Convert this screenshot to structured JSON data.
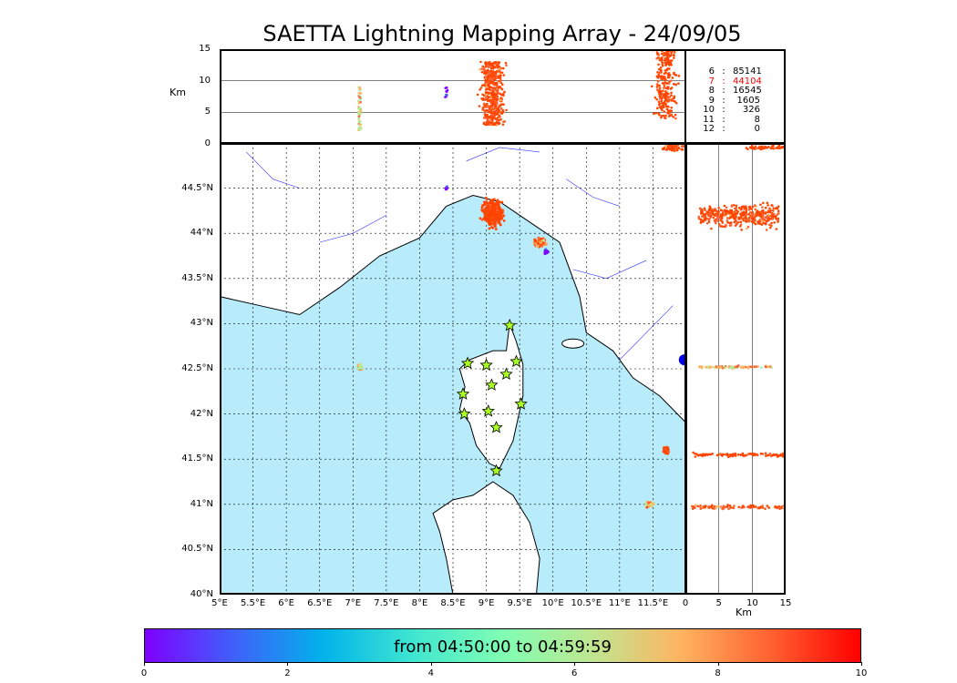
{
  "title": "SAETTA Lightning Mapping Array - 24/09/05",
  "top_panel": {
    "ylabel": "Km",
    "yticks": [
      "15",
      "10",
      "5",
      "0"
    ]
  },
  "side_panel": {
    "xlabel": "Km",
    "xticks": [
      "0",
      "5",
      "10",
      "15"
    ]
  },
  "map": {
    "lat_ticks": [
      "44.5°N",
      "44°N",
      "43.5°N",
      "43°N",
      "42.5°N",
      "42°N",
      "41.5°N",
      "41°N",
      "40.5°N",
      "40°N"
    ],
    "lon_ticks": [
      "5°E",
      "5.5°E",
      "6°E",
      "6.5°E",
      "7°E",
      "7.5°E",
      "8°E",
      "8.5°E",
      "9°E",
      "9.5°E",
      "10°E",
      "10.5°E",
      "11°E",
      "11.5°E"
    ],
    "lon_range": [
      5,
      12
    ],
    "lat_range": [
      40,
      45
    ],
    "sea_color": "#b8ecfb",
    "station_icon": "star-icon",
    "station_color": "#aaff22",
    "stations": [
      {
        "lon": 9.35,
        "lat": 42.98
      },
      {
        "lon": 8.72,
        "lat": 42.56
      },
      {
        "lon": 9.0,
        "lat": 42.54
      },
      {
        "lon": 9.45,
        "lat": 42.58
      },
      {
        "lon": 9.3,
        "lat": 42.44
      },
      {
        "lon": 9.08,
        "lat": 42.32
      },
      {
        "lon": 8.65,
        "lat": 42.22
      },
      {
        "lon": 9.52,
        "lat": 42.11
      },
      {
        "lon": 9.03,
        "lat": 42.03
      },
      {
        "lon": 8.67,
        "lat": 42.0
      },
      {
        "lon": 9.15,
        "lat": 41.85
      },
      {
        "lon": 9.15,
        "lat": 41.37
      }
    ]
  },
  "stats": [
    {
      "key": "6",
      "value": "85141",
      "highlight": false
    },
    {
      "key": "7",
      "value": "44104",
      "highlight": true
    },
    {
      "key": "8",
      "value": "16545",
      "highlight": false
    },
    {
      "key": "9",
      "value": "1605",
      "highlight": false
    },
    {
      "key": "10",
      "value": "326",
      "highlight": false
    },
    {
      "key": "11",
      "value": "8",
      "highlight": false
    },
    {
      "key": "12",
      "value": "0",
      "highlight": false
    }
  ],
  "colorbar": {
    "label": "from 04:50:00 to 04:59:59",
    "ticks": [
      "0",
      "2",
      "4",
      "6",
      "8",
      "10"
    ],
    "range": [
      0,
      10
    ]
  },
  "colors": {
    "highlight": "#ff0000",
    "lightning_early": "#7f00ff",
    "lightning_late": "#ff4500"
  }
}
